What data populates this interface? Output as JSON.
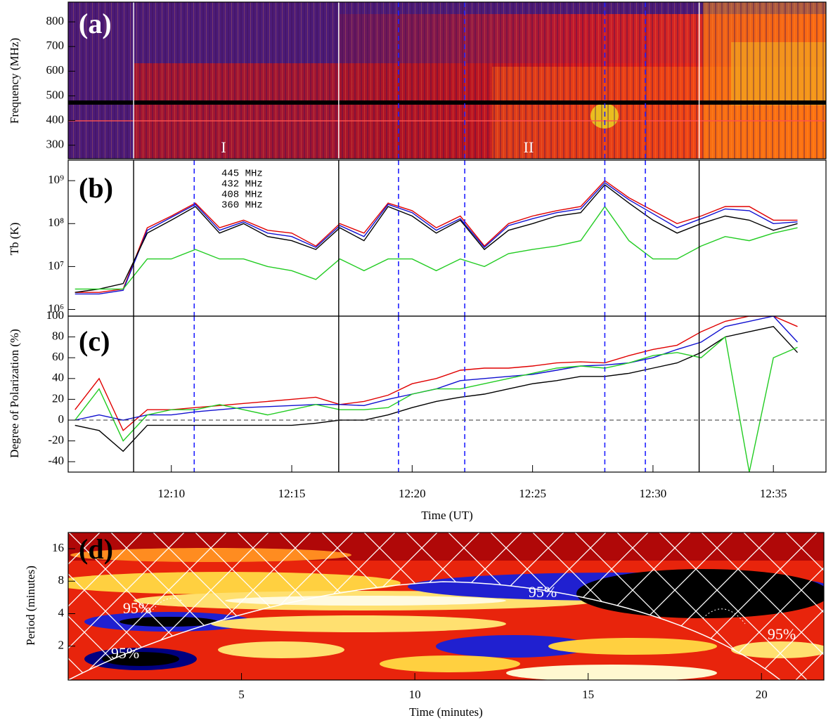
{
  "chart_data": [
    {
      "type": "spectrogram",
      "label": "(a)",
      "ylabel": "Frequency (MHz)",
      "xlim": [
        "12:05:43",
        "12:37:11"
      ],
      "ylim": [
        245,
        880
      ],
      "yticks": [
        300,
        400,
        500,
        600,
        700,
        800
      ],
      "annotations": [
        "I",
        "II"
      ],
      "vlines": [
        {
          "time": "12:08:26",
          "style": "solid",
          "color": "#ffffff"
        },
        {
          "time": "12:16:57",
          "style": "solid",
          "color": "#ffffff"
        },
        {
          "time": "12:31:55",
          "style": "solid",
          "color": "#ffffff"
        },
        {
          "time": "12:19:26",
          "style": "dashed",
          "color": "#2020ff"
        },
        {
          "time": "12:22:11",
          "style": "dashed",
          "color": "#2020ff"
        },
        {
          "time": "12:28:00",
          "style": "dashed",
          "color": "#2020ff"
        },
        {
          "time": "12:29:41",
          "style": "dashed",
          "color": "#2020ff"
        }
      ]
    },
    {
      "type": "line",
      "label": "(b)",
      "ylabel": "Tb (K)",
      "log_scale": true,
      "xlim": [
        "12:05:43",
        "12:37:11"
      ],
      "ylim": [
        700000,
        3000000000
      ],
      "yticks": [
        {
          "value": 1000000,
          "label": "10⁶"
        },
        {
          "value": 10000000,
          "label": "10⁷"
        },
        {
          "value": 100000000,
          "label": "10⁸"
        },
        {
          "value": 1000000000,
          "label": "10⁹"
        }
      ],
      "x": [
        "12:06",
        "12:07",
        "12:08",
        "12:09",
        "12:10",
        "12:11",
        "12:12",
        "12:13",
        "12:14",
        "12:15",
        "12:16",
        "12:17",
        "12:18",
        "12:19",
        "12:20",
        "12:21",
        "12:22",
        "12:23",
        "12:24",
        "12:25",
        "12:26",
        "12:27",
        "12:28",
        "12:29",
        "12:30",
        "12:31",
        "12:32",
        "12:33",
        "12:34",
        "12:35",
        "12:36"
      ],
      "series": [
        {
          "name": "445 MHz",
          "color": "#e00000",
          "values": [
            2500000,
            2500000,
            3000000,
            80000000,
            150000000,
            300000000,
            80000000,
            120000000,
            70000000,
            60000000,
            30000000,
            100000000,
            60000000,
            300000000,
            200000000,
            80000000,
            150000000,
            30000000,
            100000000,
            150000000,
            200000000,
            250000000,
            1000000000,
            400000000,
            200000000,
            100000000,
            150000000,
            250000000,
            250000000,
            120000000,
            120000000
          ]
        },
        {
          "name": "432 MHz",
          "color": "#1010d0",
          "values": [
            2300000,
            2300000,
            2800000,
            70000000,
            140000000,
            280000000,
            70000000,
            110000000,
            60000000,
            50000000,
            28000000,
            90000000,
            50000000,
            280000000,
            180000000,
            70000000,
            130000000,
            28000000,
            90000000,
            130000000,
            180000000,
            220000000,
            900000000,
            360000000,
            170000000,
            80000000,
            130000000,
            220000000,
            200000000,
            100000000,
            110000000
          ]
        },
        {
          "name": "408 MHz",
          "color": "#000000",
          "values": [
            2500000,
            3000000,
            4000000,
            60000000,
            120000000,
            250000000,
            60000000,
            100000000,
            50000000,
            40000000,
            25000000,
            80000000,
            40000000,
            250000000,
            150000000,
            60000000,
            120000000,
            25000000,
            70000000,
            100000000,
            150000000,
            180000000,
            800000000,
            300000000,
            120000000,
            60000000,
            100000000,
            150000000,
            120000000,
            70000000,
            100000000
          ]
        },
        {
          "name": "360 MHz",
          "color": "#22cc22",
          "values": [
            3000000,
            3000000,
            3000000,
            15000000,
            15000000,
            25000000,
            15000000,
            15000000,
            10000000,
            8000000,
            5000000,
            15000000,
            8000000,
            15000000,
            15000000,
            8000000,
            15000000,
            10000000,
            20000000,
            25000000,
            30000000,
            40000000,
            250000000,
            40000000,
            15000000,
            15000000,
            30000000,
            50000000,
            40000000,
            60000000,
            80000000
          ]
        }
      ],
      "vlines": [
        {
          "time": "12:08:26",
          "style": "solid",
          "color": "#000000"
        },
        {
          "time": "12:16:57",
          "style": "solid",
          "color": "#000000"
        },
        {
          "time": "12:31:55",
          "style": "solid",
          "color": "#000000"
        },
        {
          "time": "12:10:57",
          "style": "dashed",
          "color": "#2020ff"
        },
        {
          "time": "12:19:26",
          "style": "dashed",
          "color": "#2020ff"
        },
        {
          "time": "12:22:11",
          "style": "dashed",
          "color": "#2020ff"
        },
        {
          "time": "12:28:00",
          "style": "dashed",
          "color": "#2020ff"
        },
        {
          "time": "12:29:41",
          "style": "dashed",
          "color": "#2020ff"
        }
      ]
    },
    {
      "type": "line",
      "label": "(c)",
      "ylabel": "Degree of Polarization (%)",
      "xlabel": "Time (UT)",
      "xlim": [
        "12:05:43",
        "12:37:11"
      ],
      "ylim": [
        -50,
        100
      ],
      "yticks": [
        -40,
        -20,
        0,
        20,
        40,
        60,
        80,
        100
      ],
      "xticks": [
        "12:10",
        "12:15",
        "12:20",
        "12:25",
        "12:30",
        "12:35"
      ],
      "hline": {
        "value": 0,
        "style": "dashed",
        "color": "#333333"
      },
      "x": [
        "12:06",
        "12:07",
        "12:08",
        "12:09",
        "12:10",
        "12:11",
        "12:12",
        "12:13",
        "12:14",
        "12:15",
        "12:16",
        "12:17",
        "12:18",
        "12:19",
        "12:20",
        "12:21",
        "12:22",
        "12:23",
        "12:24",
        "12:25",
        "12:26",
        "12:27",
        "12:28",
        "12:29",
        "12:30",
        "12:31",
        "12:32",
        "12:33",
        "12:34",
        "12:35",
        "12:36"
      ],
      "series": [
        {
          "name": "445 MHz",
          "color": "#e00000",
          "values": [
            10,
            40,
            -10,
            10,
            10,
            12,
            14,
            16,
            18,
            20,
            22,
            15,
            18,
            24,
            35,
            40,
            48,
            50,
            50,
            52,
            55,
            56,
            55,
            62,
            68,
            72,
            85,
            95,
            100,
            100,
            90
          ]
        },
        {
          "name": "432 MHz",
          "color": "#1010d0",
          "values": [
            0,
            5,
            0,
            5,
            5,
            8,
            10,
            12,
            13,
            14,
            15,
            15,
            14,
            20,
            25,
            30,
            38,
            40,
            42,
            44,
            48,
            52,
            53,
            55,
            60,
            68,
            75,
            90,
            95,
            100,
            75
          ]
        },
        {
          "name": "408 MHz",
          "color": "#000000",
          "values": [
            -5,
            -10,
            -30,
            -5,
            -5,
            -5,
            -5,
            -5,
            -5,
            -5,
            -3,
            0,
            0,
            5,
            12,
            18,
            22,
            25,
            30,
            35,
            38,
            42,
            42,
            45,
            50,
            55,
            65,
            80,
            85,
            90,
            65
          ]
        },
        {
          "name": "360 MHz",
          "color": "#22cc22",
          "values": [
            0,
            30,
            -20,
            5,
            10,
            10,
            15,
            10,
            5,
            10,
            15,
            10,
            10,
            12,
            25,
            30,
            30,
            35,
            40,
            45,
            50,
            52,
            50,
            55,
            62,
            65,
            60,
            80,
            -50,
            60,
            70
          ]
        }
      ],
      "vlines": [
        {
          "time": "12:08:26",
          "style": "solid",
          "color": "#000000"
        },
        {
          "time": "12:16:57",
          "style": "solid",
          "color": "#000000"
        },
        {
          "time": "12:31:55",
          "style": "solid",
          "color": "#000000"
        },
        {
          "time": "12:10:57",
          "style": "dashed",
          "color": "#2020ff"
        },
        {
          "time": "12:19:26",
          "style": "dashed",
          "color": "#2020ff"
        },
        {
          "time": "12:22:11",
          "style": "dashed",
          "color": "#2020ff"
        },
        {
          "time": "12:28:00",
          "style": "dashed",
          "color": "#2020ff"
        },
        {
          "time": "12:29:41",
          "style": "dashed",
          "color": "#2020ff"
        }
      ]
    },
    {
      "type": "wavelet",
      "label": "(d)",
      "xlabel": "Time (minutes)",
      "ylabel": "Period (minutes)",
      "log_scale": true,
      "xlim": [
        0,
        21.8
      ],
      "ylim": [
        0.97,
        22.6
      ],
      "xticks": [
        5,
        10,
        15,
        20
      ],
      "yticks": [
        2,
        4,
        8,
        16
      ],
      "annotations": [
        "95%",
        "95%",
        "95%",
        "95%"
      ]
    }
  ]
}
